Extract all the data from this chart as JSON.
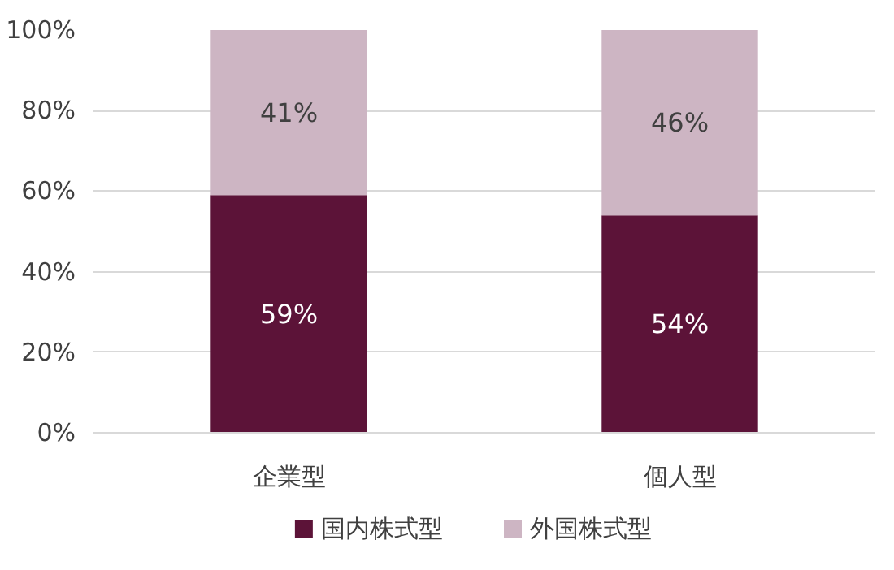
{
  "chart_data": {
    "type": "bar",
    "stacked": true,
    "categories": [
      "企業型",
      "個人型"
    ],
    "series": [
      {
        "name": "国内株式型",
        "color": "#5c1338",
        "values": [
          59,
          54
        ],
        "value_labels": [
          "59%",
          "54%"
        ]
      },
      {
        "name": "外国株式型",
        "color": "#cdb5c3",
        "values": [
          41,
          46
        ],
        "value_labels": [
          "41%",
          "46%"
        ]
      }
    ],
    "ylim": [
      0,
      100
    ],
    "yticks": [
      {
        "value": 0,
        "label": "0%"
      },
      {
        "value": 20,
        "label": "20%"
      },
      {
        "value": 40,
        "label": "40%"
      },
      {
        "value": 60,
        "label": "60%"
      },
      {
        "value": 80,
        "label": "80%"
      },
      {
        "value": 100,
        "label": "100%"
      }
    ],
    "grid": "y",
    "legend": "bottom"
  }
}
